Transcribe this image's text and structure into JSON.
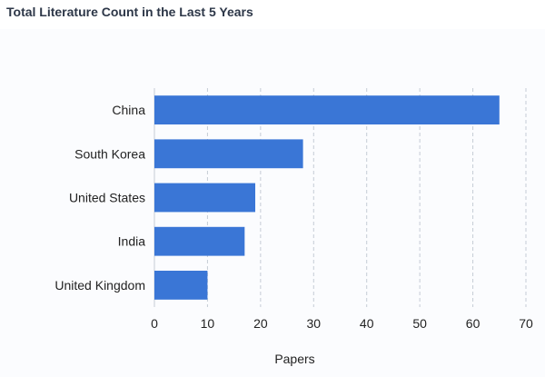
{
  "panel": {
    "title": "Total Literature Count in the Last 5 Years"
  },
  "chart_data": {
    "type": "bar",
    "orientation": "horizontal",
    "title": "",
    "xlabel": "Papers",
    "ylabel": "",
    "categories": [
      "China",
      "South Korea",
      "United States",
      "India",
      "United Kingdom"
    ],
    "values": [
      65,
      28,
      19,
      17,
      10
    ],
    "xlim": [
      0,
      70
    ],
    "xticks": [
      0,
      10,
      20,
      30,
      40,
      50,
      60,
      70
    ],
    "grid": "vertical dashed",
    "bar_color": "#3a76d6"
  }
}
